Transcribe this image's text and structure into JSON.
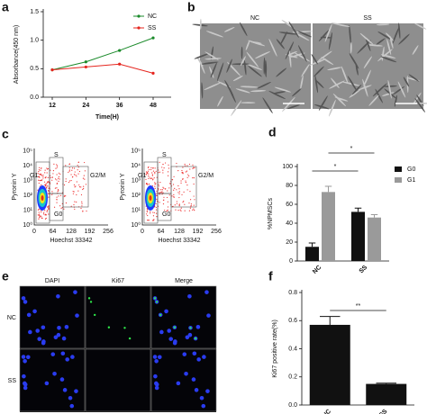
{
  "panel_letters": [
    "a",
    "b",
    "c",
    "d",
    "e",
    "f"
  ],
  "chart_data": [
    {
      "type": "line",
      "y_label": "Absorbance(450 nm)",
      "x_label": "Time(H)",
      "categories": [
        "12",
        "24",
        "36",
        "48"
      ],
      "series": [
        {
          "name": "NC",
          "color": "#1a8a2a",
          "values": [
            0.48,
            0.62,
            0.82,
            1.04
          ]
        },
        {
          "name": "SS",
          "color": "#e5251e",
          "values": [
            0.48,
            0.53,
            0.58,
            0.42
          ]
        }
      ],
      "ylim": [
        0,
        1.5
      ],
      "yticks": [
        {
          "value": 0,
          "label": "0.0"
        },
        {
          "value": 0.5,
          "label": "0.5"
        },
        {
          "value": 1,
          "label": "1.0"
        },
        {
          "value": 1.5,
          "label": "1.5"
        }
      ],
      "legend": "upper-left"
    },
    {
      "type": "bar",
      "y_label": "%NPMSCs",
      "categories": [
        "NC",
        "SS"
      ],
      "series": [
        {
          "name": "G0",
          "color": "#111111",
          "values": [
            15,
            52
          ],
          "errors": [
            4,
            4
          ]
        },
        {
          "name": "G1",
          "color": "#9a9a9a",
          "values": [
            73,
            46
          ],
          "errors": [
            6,
            3
          ]
        }
      ],
      "ylim": [
        0,
        100
      ],
      "yticks": [
        0,
        20,
        40,
        60,
        80,
        100
      ],
      "annotations": [
        "*",
        "*"
      ],
      "legend": "right"
    },
    {
      "type": "bar",
      "y_label": "Ki67 positive rate(%)",
      "categories": [
        "NC",
        "SS"
      ],
      "values": [
        0.57,
        0.15
      ],
      "errors": [
        0.06,
        0.005
      ],
      "color": "#111111",
      "ylim": [
        0,
        0.8
      ],
      "yticks": [
        {
          "value": 0,
          "label": "0.0"
        },
        {
          "value": 0.2,
          "label": "0.2"
        },
        {
          "value": 0.4,
          "label": "0.4"
        },
        {
          "value": 0.6,
          "label": "0.6"
        },
        {
          "value": 0.8,
          "label": "0.8"
        }
      ],
      "annotations": [
        "**"
      ]
    }
  ],
  "panel_b": {
    "labels": [
      "NC",
      "SS"
    ]
  },
  "panel_c": {
    "plots": [
      {
        "y_label": "Pyronin Y",
        "x_label": "Hoechst 33342",
        "xticks": [
          "0",
          "64",
          "128",
          "192",
          "256"
        ],
        "yticks": [
          "10⁰",
          "10¹",
          "10²",
          "10³",
          "10⁴",
          "10⁵"
        ],
        "gates": [
          "G1",
          "S",
          "G2/M",
          "G0"
        ]
      },
      {
        "y_label": "Pyronin Y",
        "x_label": "Hoechst 33342",
        "xticks": [
          "0",
          "64",
          "128",
          "192",
          "256"
        ],
        "yticks": [
          "10⁰",
          "10¹",
          "10²",
          "10³",
          "10⁴",
          "10⁵"
        ],
        "gates": [
          "G1",
          "S",
          "G2/M",
          "G0"
        ]
      }
    ]
  },
  "panel_e": {
    "columns": [
      "DAPI",
      "Ki67",
      "Merge"
    ],
    "rows": [
      "NC",
      "SS"
    ]
  }
}
